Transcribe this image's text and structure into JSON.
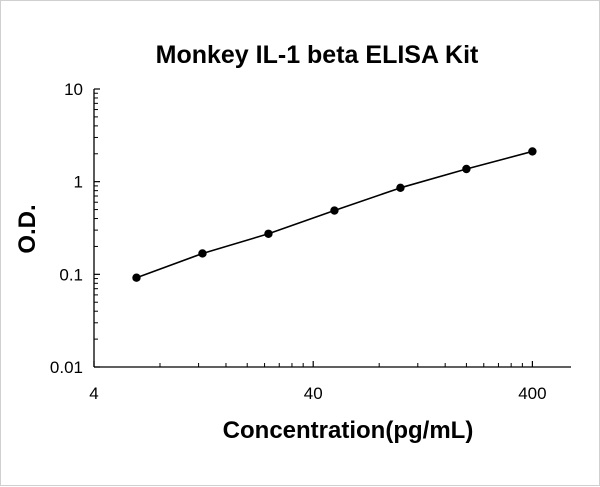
{
  "chart_data": {
    "type": "line",
    "title": "Monkey IL-1 beta ELISA Kit",
    "xlabel": "Concentration(pg/mL)",
    "ylabel": "O.D.",
    "x_scale": "log",
    "y_scale": "log",
    "xlim": [
      4,
      600
    ],
    "ylim": [
      0.01,
      10
    ],
    "x_ticks": [
      {
        "value": 4,
        "label": "4"
      },
      {
        "value": 40,
        "label": "40"
      },
      {
        "value": 400,
        "label": "400"
      }
    ],
    "y_ticks": [
      {
        "value": 10,
        "label": "10"
      },
      {
        "value": 1,
        "label": "1"
      },
      {
        "value": 0.1,
        "label": "0.1"
      },
      {
        "value": 0.01,
        "label": "0.01"
      }
    ],
    "series": [
      {
        "x": [
          6.25,
          12.5,
          25,
          50,
          100,
          200,
          400
        ],
        "y": [
          0.092,
          0.168,
          0.274,
          0.488,
          0.858,
          1.37,
          2.12
        ]
      }
    ],
    "grid": false,
    "legend": "none",
    "marker_color": "#000000",
    "line_color": "#000000"
  }
}
